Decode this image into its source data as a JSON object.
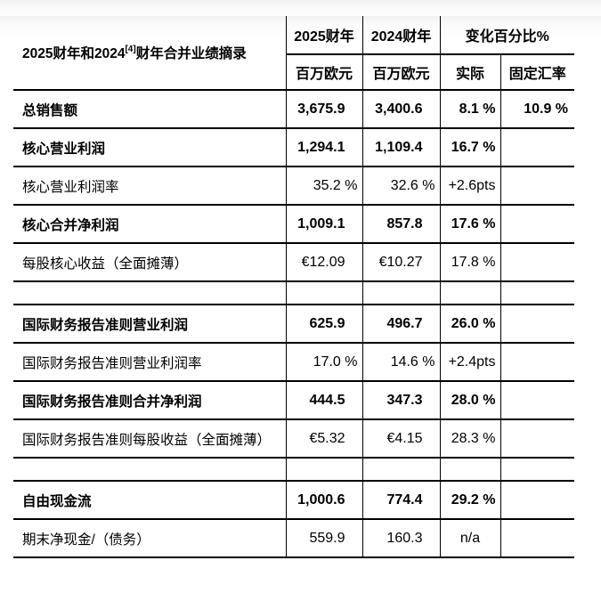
{
  "table": {
    "title_prefix": "2025财年和2024",
    "title_sup": "[4]",
    "title_suffix": "财年合并业绩摘录",
    "header": {
      "fy2025": "2025财年",
      "fy2024": "2024财年",
      "change_pct": "变化百分比%",
      "unit_fy2025": "百万欧元",
      "unit_fy2024": "百万欧元",
      "actual": "实际",
      "fixed_rate": "固定汇率"
    },
    "rows": [
      {
        "label": "总销售额",
        "bold": true,
        "fy2025": "3,675.9",
        "fy2024": "3,400.6",
        "actual": "8.1 %",
        "fixed_rate": "10.9 %"
      },
      {
        "label": "核心营业利润",
        "bold": true,
        "fy2025": "1,294.1",
        "fy2024": "1,109.4",
        "actual": "16.7 %",
        "fixed_rate": ""
      },
      {
        "label": "核心营业利润率",
        "bold": false,
        "fy2025": "35.2 %",
        "fy2024": "32.6 %",
        "actual": "+2.6pts",
        "fixed_rate": ""
      },
      {
        "label": "核心合并净利润",
        "bold": true,
        "fy2025": "1,009.1",
        "fy2024": "857.8",
        "actual": "17.6 %",
        "fixed_rate": ""
      },
      {
        "label": "每股核心收益（全面摊薄）",
        "bold": false,
        "fy2025": "€12.09",
        "fy2024": "€10.27",
        "actual": "17.8 %",
        "fixed_rate": ""
      },
      {
        "spacer": true
      },
      {
        "label": "国际财务报告准则营业利润",
        "bold": true,
        "fy2025": "625.9",
        "fy2024": "496.7",
        "actual": "26.0 %",
        "fixed_rate": ""
      },
      {
        "label": "国际财务报告准则营业利润率",
        "bold": false,
        "fy2025": "17.0 %",
        "fy2024": "14.6 %",
        "actual": "+2.4pts",
        "fixed_rate": ""
      },
      {
        "label": "国际财务报告准则合并净利润",
        "bold": true,
        "fy2025": "444.5",
        "fy2024": "347.3",
        "actual": "28.0 %",
        "fixed_rate": ""
      },
      {
        "label": "国际财务报告准则每股收益（全面摊薄）",
        "bold": false,
        "fy2025": "€5.32",
        "fy2024": "€4.15",
        "actual": "28.3 %",
        "fixed_rate": ""
      },
      {
        "spacer": true
      },
      {
        "label": "自由现金流",
        "bold": true,
        "fy2025": "1,000.6",
        "fy2024": "774.4",
        "actual": "29.2 %",
        "fixed_rate": ""
      },
      {
        "label": "期末净现金/（债务）",
        "bold": false,
        "fy2025": "559.9",
        "fy2024": "160.3",
        "actual": "n/a",
        "actual_center": true,
        "fixed_rate": ""
      }
    ]
  }
}
